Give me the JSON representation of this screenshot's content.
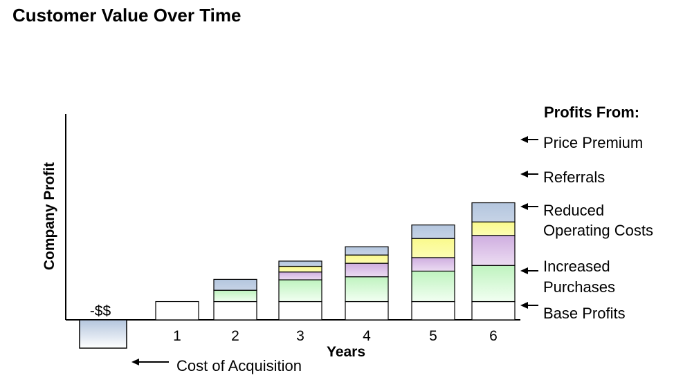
{
  "title": "Customer Value Over Time",
  "chart_data": {
    "type": "bar",
    "stacked": true,
    "title": "Customer Value Over Time",
    "xlabel": "Years",
    "ylabel": "Company Profit",
    "categories": [
      "1",
      "2",
      "3",
      "4",
      "5",
      "6"
    ],
    "series": [
      {
        "name": "Base Profits",
        "values": [
          42,
          42,
          42,
          42,
          42,
          42
        ]
      },
      {
        "name": "Increased Purchases",
        "values": [
          0,
          26,
          50,
          57,
          70,
          83
        ]
      },
      {
        "name": "Reduced Operating Costs",
        "values": [
          0,
          0,
          18,
          31,
          31,
          69
        ]
      },
      {
        "name": "Referrals",
        "values": [
          0,
          0,
          13,
          19,
          44,
          31
        ]
      },
      {
        "name": "Price Premium",
        "values": [
          0,
          25,
          12,
          19,
          31,
          44
        ]
      }
    ],
    "acquisition": {
      "label": "-$$",
      "category_label": "Cost of Acquisition",
      "value": -65
    },
    "legend_title": "Profits From:",
    "legend_placement": "right",
    "grid": false,
    "colors": {
      "Base Profits": "#ffffff",
      "Increased Purchases": "#c8f5c8",
      "Reduced Operating Costs": "#d3b6e2",
      "Referrals": "#fbfb96",
      "Price Premium": "#b9c9df",
      "acquisition": "#b9c9df"
    }
  }
}
